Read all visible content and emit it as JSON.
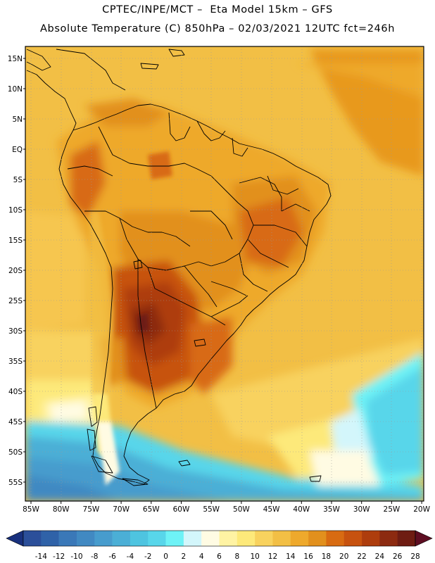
{
  "header": {
    "line1": "CPTEC/INPE/MCT –  Eta Model 15km – GFS",
    "line2": "Absolute Temperature (C) 850hPa – 02/03/2021 12UTC fct=246h"
  },
  "map": {
    "lat_labels": [
      "15N",
      "10N",
      "5N",
      "EQ",
      "5S",
      "10S",
      "15S",
      "20S",
      "25S",
      "30S",
      "35S",
      "40S",
      "45S",
      "50S",
      "55S"
    ],
    "lon_labels": [
      "85W",
      "80W",
      "75W",
      "70W",
      "65W",
      "60W",
      "55W",
      "50W",
      "45W",
      "40W",
      "35W",
      "30W",
      "25W",
      "20W"
    ]
  },
  "colorbar": {
    "ticks": [
      "-14",
      "-12",
      "-10",
      "-8",
      "-6",
      "-4",
      "-2",
      "0",
      "2",
      "4",
      "6",
      "8",
      "10",
      "12",
      "14",
      "16",
      "18",
      "20",
      "22",
      "24",
      "26",
      "28"
    ],
    "colors": [
      "#2b4f9a",
      "#2f62a8",
      "#3a78b8",
      "#4189c2",
      "#479ccd",
      "#4bafd6",
      "#4ec4e0",
      "#58d6ea",
      "#6ef2f6",
      "#d3f6fb",
      "#fffbe3",
      "#fff3a3",
      "#fde97a",
      "#f8d25e",
      "#f2bf45",
      "#eea92c",
      "#e2901d",
      "#d86b12",
      "#c7520f",
      "#ae3d0d",
      "#8c2a10",
      "#6e1c12"
    ],
    "left_arrow_color": "#18307d",
    "right_arrow_color": "#5e0e22"
  }
}
